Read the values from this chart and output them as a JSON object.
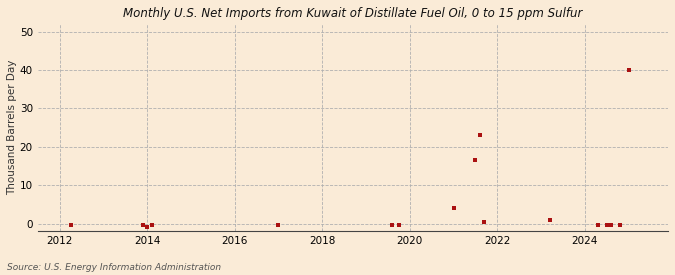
{
  "title": "Monthly U.S. Net Imports from Kuwait of Distillate Fuel Oil, 0 to 15 ppm Sulfur",
  "ylabel": "Thousand Barrels per Day",
  "source": "Source: U.S. Energy Information Administration",
  "background_color": "#faebd7",
  "plot_bg_color": "#faebd7",
  "marker_color": "#aa1111",
  "xlim": [
    2011.5,
    2025.9
  ],
  "ylim": [
    -2,
    52
  ],
  "yticks": [
    0,
    10,
    20,
    30,
    40,
    50
  ],
  "xticks": [
    2012,
    2014,
    2016,
    2018,
    2020,
    2022,
    2024
  ],
  "data_x": [
    2012.25,
    2013.9,
    2014.0,
    2014.1,
    2017.0,
    2019.6,
    2019.75,
    2021.0,
    2021.5,
    2021.6,
    2021.7,
    2023.2,
    2024.3,
    2024.5,
    2024.6,
    2024.8,
    2025.0
  ],
  "data_y": [
    -0.5,
    -0.5,
    -0.8,
    -0.5,
    -0.5,
    -0.5,
    -0.5,
    4.0,
    16.5,
    23.0,
    0.5,
    1.0,
    -0.5,
    -0.5,
    -0.5,
    -0.5,
    40.0
  ],
  "title_fontsize": 8.5,
  "tick_fontsize": 7.5,
  "ylabel_fontsize": 7.5,
  "source_fontsize": 6.5
}
